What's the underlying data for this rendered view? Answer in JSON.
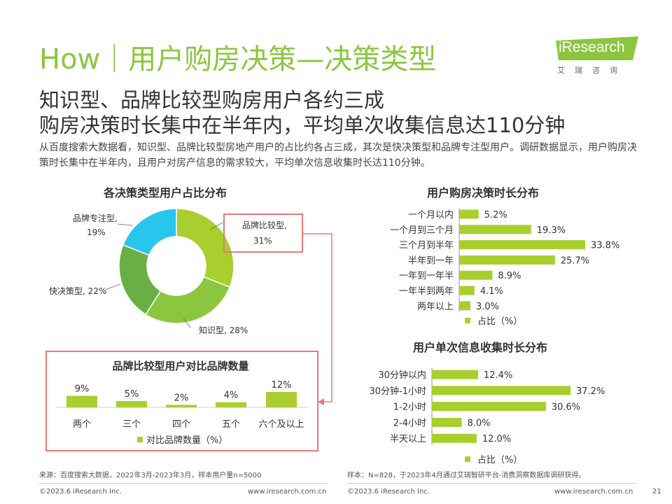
{
  "header": {
    "title": "How｜用户购房决策—决策类型",
    "logo_text": "Research",
    "logo_i": "i",
    "logo_sub": "艾瑞咨询"
  },
  "headline": {
    "line1": "知识型、品牌比较型购房用户各约三成",
    "line2": "购房决策时长集中在半年内，平均单次收集信息达110分钟"
  },
  "description": "从百度搜索大数据看，知识型、品牌比较型房地产用户的占比约各占三成，其次是快决策型和品牌专注型用户。调研数据显示，用户购房决策时长集中在半年内，且用户对房产信息的需求较大，平均单次信息收集时长达110分钟。",
  "colors": {
    "accent": "#8cc63f",
    "bar": "#a8cf2e",
    "highlight": "#e8787a"
  },
  "chart_data": [
    {
      "type": "pie",
      "title": "各决策类型用户占比分布",
      "donut": true,
      "slices": [
        {
          "label": "品牌比较型",
          "value": 31,
          "value_label": "31%",
          "color": "#a8cf2e"
        },
        {
          "label": "知识型",
          "value": 28,
          "value_label": "28%",
          "color": "#8cc63f"
        },
        {
          "label": "快决策型",
          "value": 22,
          "value_label": "22%",
          "color": "#6aaf45"
        },
        {
          "label": "品牌专注型",
          "value": 19,
          "value_label": "19%",
          "color": "#29c5ef"
        }
      ]
    },
    {
      "type": "bar",
      "orientation": "vertical",
      "title": "品牌比较型用户对比品牌数量",
      "categories": [
        "两个",
        "三个",
        "四个",
        "五个",
        "六个及以上"
      ],
      "values": [
        9,
        5,
        2,
        4,
        12
      ],
      "value_labels": [
        "9%",
        "5%",
        "2%",
        "4%",
        "12%"
      ],
      "legend": "对比品牌数量（%）"
    },
    {
      "type": "bar",
      "orientation": "horizontal",
      "title": "用户购房决策时长分布",
      "categories": [
        "一个月以内",
        "一个月到三个月",
        "三个月到半年",
        "半年到一年",
        "一年到一年半",
        "一年半到两年",
        "两年以上"
      ],
      "values": [
        5.2,
        19.3,
        33.8,
        25.7,
        8.9,
        4.1,
        3.0
      ],
      "value_labels": [
        "5.2%",
        "19.3%",
        "33.8%",
        "25.7%",
        "8.9%",
        "4.1%",
        "3.0%"
      ],
      "legend": "占比（%）"
    },
    {
      "type": "bar",
      "orientation": "horizontal",
      "title": "用户单次信息收集时长分布",
      "categories": [
        "30分钟以内",
        "30分钟-1小时",
        "1-2小时",
        "2-4小时",
        "半天以上"
      ],
      "values": [
        12.4,
        37.2,
        30.6,
        8.0,
        12.0
      ],
      "value_labels": [
        "12.4%",
        "37.2%",
        "30.6%",
        "8.0%",
        "12.0%"
      ],
      "legend": "占比（%）"
    }
  ],
  "notes": {
    "left": "来源：百度搜索大数据，2022年3月-2023年3月，样本用户量n=5000",
    "right": "样本：N=828，于2023年4月通过艾瑞智研平台-消费洞察数据库调研获得。"
  },
  "footer": {
    "copyright_left": "©2023.6 iResearch Inc.",
    "url_left": "www.iresearch.com.cn",
    "copyright_right": "©2023.6 iResearch Inc.",
    "url_right": "www.iresearch.com.cn",
    "page_number": "21"
  }
}
